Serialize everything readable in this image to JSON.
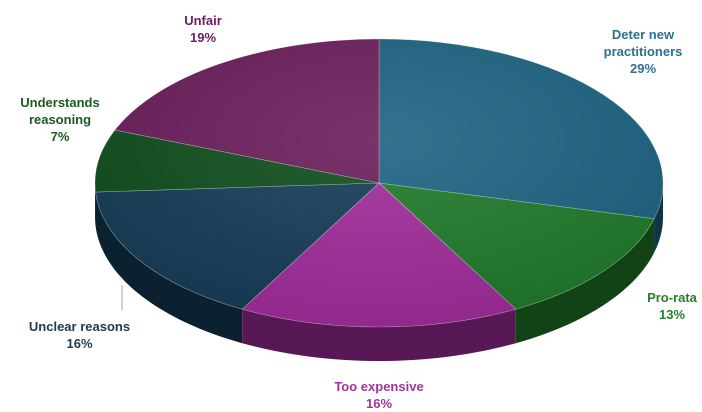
{
  "chart_data": {
    "type": "pie",
    "title": "",
    "style": "3d-exploded-none",
    "slices": [
      {
        "label": "Deter new practitioners",
        "value": 29,
        "display": "29%",
        "color": "#1c6381"
      },
      {
        "label": "Pro-rata",
        "value": 13,
        "display": "13%",
        "color": "#1f7a2a"
      },
      {
        "label": "Too expensive",
        "value": 16,
        "display": "16%",
        "color": "#a02b9a"
      },
      {
        "label": "Unclear reasons",
        "value": 16,
        "display": "16%",
        "color": "#153c57"
      },
      {
        "label": "Understands reasoning",
        "value": 7,
        "display": "7%",
        "color": "#0f4d1d"
      },
      {
        "label": "Unfair",
        "value": 19,
        "display": "19%",
        "color": "#6a1d5a"
      }
    ],
    "label_colors": {
      "Deter new practitioners": "#2f6f8f",
      "Pro-rata": "#2a7d2a",
      "Too expensive": "#a0369c",
      "Unclear reasons": "#1e3a4f",
      "Understands reasoning": "#1b5a22",
      "Unfair": "#6b2160"
    }
  },
  "labels": {
    "deter": {
      "name_line1": "Deter new",
      "name_line2": "practitioners",
      "pct": "29%"
    },
    "prorata": {
      "name": "Pro-rata",
      "pct": "13%"
    },
    "expensive": {
      "name": "Too expensive",
      "pct": "16%"
    },
    "unclear": {
      "name": "Unclear reasons",
      "pct": "16%"
    },
    "understands": {
      "name_line1": "Understands",
      "name_line2": "reasoning",
      "pct": "7%"
    },
    "unfair": {
      "name": "Unfair",
      "pct": "19%"
    }
  }
}
